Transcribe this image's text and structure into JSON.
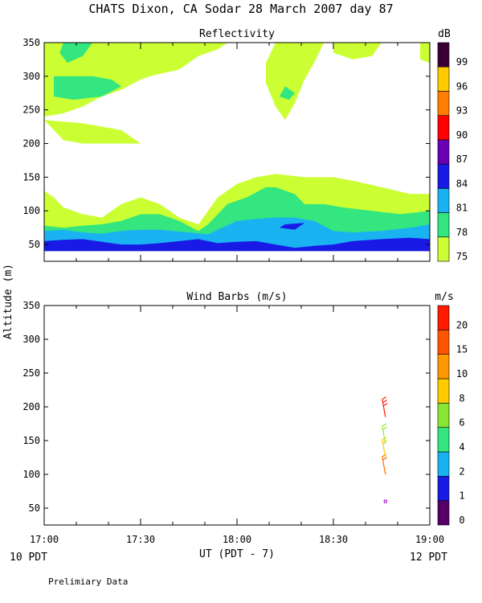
{
  "header": {
    "title": "CHATS Dixon, CA  Sodar  28 March 2007  day  87",
    "footer_left_time": "10 PDT",
    "footer_right_time": "12 PDT",
    "footer_note": "Prelimiary Data"
  },
  "colors": {
    "white": "#ffffff",
    "level_75": "#ccff33",
    "level_78": "#33e680",
    "level_81": "#1ab3f2",
    "level_84": "#1a1ae6",
    "level_87": "#6a00b3",
    "level_90": "#ff0000",
    "level_93": "#ff8000",
    "level_96": "#ffcc00",
    "level_99": "#3a0033"
  },
  "chart_data": [
    {
      "type": "heatmap",
      "title": "Reflectivity",
      "ylabel": "Altitude (m)",
      "xlabel": "UT  (PDT - 7)",
      "x_ticks": [
        "17:00",
        "17:30",
        "18:00",
        "18:30",
        "19:00"
      ],
      "xlim": [
        17.0,
        19.0
      ],
      "ylim": [
        25,
        350
      ],
      "y_ticks": [
        50,
        100,
        150,
        200,
        250,
        300,
        350
      ],
      "colorbar": {
        "unit": "dB",
        "levels": [
          "75",
          "78",
          "81",
          "84",
          "87",
          "90",
          "93",
          "96",
          "99"
        ],
        "colors": [
          "#ccff33",
          "#33e680",
          "#1ab3f2",
          "#1a1ae6",
          "#6a00b3",
          "#ff0000",
          "#ff8000",
          "#ffcc00",
          "#3a0033"
        ]
      },
      "regions": [
        {
          "level": "75",
          "points": [
            [
              17.0,
              40
            ],
            [
              19.0,
              40
            ],
            [
              19.0,
              125
            ],
            [
              18.9,
              125
            ],
            [
              18.75,
              135
            ],
            [
              18.6,
              145
            ],
            [
              18.5,
              150
            ],
            [
              18.35,
              150
            ],
            [
              18.2,
              155
            ],
            [
              18.1,
              150
            ],
            [
              18.0,
              140
            ],
            [
              17.9,
              120
            ],
            [
              17.85,
              100
            ],
            [
              17.8,
              80
            ],
            [
              17.7,
              90
            ],
            [
              17.6,
              110
            ],
            [
              17.5,
              120
            ],
            [
              17.4,
              110
            ],
            [
              17.3,
              90
            ],
            [
              17.2,
              95
            ],
            [
              17.1,
              105
            ],
            [
              17.05,
              120
            ],
            [
              17.0,
              130
            ]
          ]
        },
        {
          "level": "75",
          "points": [
            [
              17.0,
              350
            ],
            [
              17.95,
              350
            ],
            [
              17.9,
              340
            ],
            [
              17.8,
              330
            ],
            [
              17.7,
              310
            ],
            [
              17.55,
              300
            ],
            [
              17.5,
              295
            ],
            [
              17.4,
              280
            ],
            [
              17.3,
              270
            ],
            [
              17.2,
              255
            ],
            [
              17.1,
              245
            ],
            [
              17.0,
              240
            ]
          ]
        },
        {
          "level": "75",
          "points": [
            [
              17.0,
              235
            ],
            [
              17.05,
              220
            ],
            [
              17.1,
              205
            ],
            [
              17.2,
              200
            ],
            [
              17.35,
              200
            ],
            [
              17.5,
              200
            ],
            [
              17.4,
              220
            ],
            [
              17.2,
              230
            ],
            [
              17.0,
              235
            ]
          ]
        },
        {
          "level": "75",
          "points": [
            [
              18.2,
              350
            ],
            [
              18.45,
              350
            ],
            [
              18.4,
              320
            ],
            [
              18.35,
              295
            ],
            [
              18.3,
              260
            ],
            [
              18.25,
              235
            ],
            [
              18.2,
              255
            ],
            [
              18.15,
              290
            ],
            [
              18.15,
              320
            ]
          ]
        },
        {
          "level": "75",
          "points": [
            [
              18.5,
              350
            ],
            [
              18.75,
              350
            ],
            [
              18.7,
              330
            ],
            [
              18.6,
              325
            ],
            [
              18.5,
              335
            ]
          ]
        },
        {
          "level": "75",
          "points": [
            [
              18.95,
              350
            ],
            [
              19.0,
              350
            ],
            [
              19.0,
              320
            ],
            [
              18.95,
              325
            ]
          ]
        },
        {
          "level": "78",
          "points": [
            [
              17.0,
              45
            ],
            [
              19.0,
              45
            ],
            [
              19.0,
              100
            ],
            [
              18.85,
              95
            ],
            [
              18.7,
              100
            ],
            [
              18.55,
              105
            ],
            [
              18.45,
              110
            ],
            [
              18.35,
              110
            ],
            [
              18.3,
              125
            ],
            [
              18.2,
              135
            ],
            [
              18.15,
              135
            ],
            [
              18.05,
              120
            ],
            [
              17.95,
              110
            ],
            [
              17.85,
              80
            ],
            [
              17.8,
              70
            ],
            [
              17.7,
              85
            ],
            [
              17.6,
              95
            ],
            [
              17.5,
              95
            ],
            [
              17.4,
              85
            ],
            [
              17.3,
              80
            ],
            [
              17.2,
              78
            ],
            [
              17.1,
              75
            ],
            [
              17.0,
              78
            ]
          ]
        },
        {
          "level": "78",
          "points": [
            [
              17.05,
              300
            ],
            [
              17.25,
              300
            ],
            [
              17.35,
              295
            ],
            [
              17.4,
              285
            ],
            [
              17.3,
              270
            ],
            [
              17.15,
              265
            ],
            [
              17.05,
              270
            ]
          ]
        },
        {
          "level": "78",
          "points": [
            [
              17.1,
              350
            ],
            [
              17.25,
              350
            ],
            [
              17.2,
              330
            ],
            [
              17.12,
              320
            ],
            [
              17.08,
              335
            ]
          ]
        },
        {
          "level": "78",
          "points": [
            [
              18.25,
              285
            ],
            [
              18.3,
              275
            ],
            [
              18.27,
              265
            ],
            [
              18.22,
              270
            ]
          ]
        },
        {
          "level": "81",
          "points": [
            [
              17.0,
              45
            ],
            [
              19.0,
              45
            ],
            [
              19.0,
              80
            ],
            [
              18.9,
              75
            ],
            [
              18.75,
              70
            ],
            [
              18.6,
              68
            ],
            [
              18.5,
              70
            ],
            [
              18.4,
              85
            ],
            [
              18.3,
              90
            ],
            [
              18.2,
              90
            ],
            [
              18.1,
              88
            ],
            [
              18.0,
              85
            ],
            [
              17.9,
              72
            ],
            [
              17.85,
              65
            ],
            [
              17.75,
              68
            ],
            [
              17.6,
              72
            ],
            [
              17.5,
              72
            ],
            [
              17.4,
              70
            ],
            [
              17.3,
              66
            ],
            [
              17.2,
              68
            ],
            [
              17.1,
              72
            ],
            [
              17.0,
              70
            ]
          ]
        },
        {
          "level": "84",
          "points": [
            [
              17.0,
              40
            ],
            [
              19.0,
              40
            ],
            [
              19.0,
              58
            ],
            [
              18.9,
              60
            ],
            [
              18.75,
              58
            ],
            [
              18.6,
              55
            ],
            [
              18.5,
              50
            ],
            [
              18.4,
              48
            ],
            [
              18.3,
              45
            ],
            [
              18.2,
              50
            ],
            [
              18.1,
              55
            ],
            [
              18.0,
              54
            ],
            [
              17.9,
              52
            ],
            [
              17.8,
              58
            ],
            [
              17.7,
              55
            ],
            [
              17.6,
              52
            ],
            [
              17.5,
              50
            ],
            [
              17.4,
              50
            ],
            [
              17.3,
              54
            ],
            [
              17.2,
              58
            ],
            [
              17.1,
              57
            ],
            [
              17.0,
              55
            ]
          ]
        },
        {
          "level": "84",
          "points": [
            [
              18.25,
              80
            ],
            [
              18.35,
              82
            ],
            [
              18.3,
              72
            ],
            [
              18.22,
              75
            ]
          ]
        }
      ]
    },
    {
      "type": "scatter",
      "title": "Wind Barbs (m/s)",
      "ylabel": "Altitude (m)",
      "xlabel": "UT  (PDT - 7)",
      "x_ticks": [
        "17:00",
        "17:30",
        "18:00",
        "18:30",
        "19:00"
      ],
      "xlim": [
        17.0,
        19.0
      ],
      "ylim": [
        25,
        350
      ],
      "y_ticks": [
        50,
        100,
        150,
        200,
        250,
        300,
        350
      ],
      "colorbar": {
        "unit": "m/s",
        "levels": [
          "0",
          "1",
          "2",
          "4",
          "6",
          "8",
          "10",
          "15",
          "20"
        ],
        "colors": [
          "#550066",
          "#1a1ae6",
          "#1ab3f2",
          "#33e680",
          "#88e633",
          "#ffcc00",
          "#ff9900",
          "#ff5500",
          "#ff1a00"
        ]
      },
      "barbs": [
        {
          "x": 18.77,
          "y": 60,
          "speed": 1,
          "color": "#aa00cc"
        },
        {
          "x": 18.77,
          "y": 100,
          "speed": 9,
          "color": "#ff6600"
        },
        {
          "x": 18.77,
          "y": 125,
          "speed": 7,
          "color": "#ffcc00"
        },
        {
          "x": 18.77,
          "y": 145,
          "speed": 6,
          "color": "#99e633"
        },
        {
          "x": 18.77,
          "y": 185,
          "speed": 12,
          "color": "#ff1a00"
        }
      ]
    }
  ]
}
